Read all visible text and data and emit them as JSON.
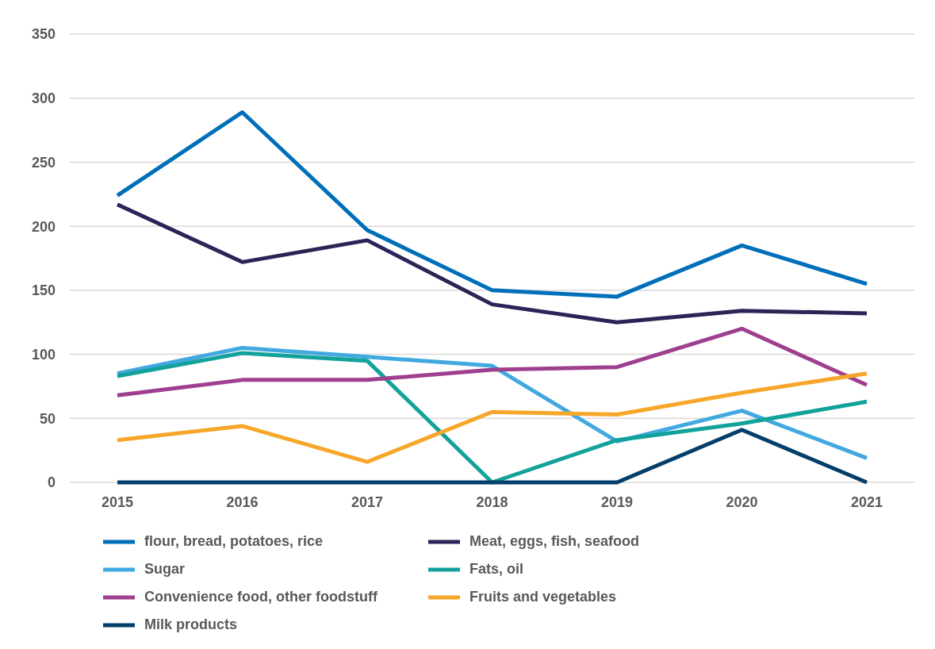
{
  "chart_data": {
    "type": "line",
    "categories": [
      "2015",
      "2016",
      "2017",
      "2018",
      "2019",
      "2020",
      "2021"
    ],
    "series": [
      {
        "name": "flour, bread, potatoes, rice",
        "color": "#006fba",
        "values": [
          224,
          289,
          197,
          150,
          145,
          185,
          155
        ]
      },
      {
        "name": "Meat, eggs, fish, seafood",
        "color": "#2b2457",
        "values": [
          217,
          172,
          189,
          139,
          125,
          134,
          132
        ]
      },
      {
        "name": "Sugar",
        "color": "#41a8e0",
        "values": [
          85,
          105,
          98,
          91,
          32,
          56,
          19
        ]
      },
      {
        "name": "Fats, oil",
        "color": "#13a19b",
        "values": [
          83,
          101,
          95,
          0,
          33,
          46,
          63
        ]
      },
      {
        "name": "Convenience food, other foodstuff",
        "color": "#9e3f8f",
        "values": [
          68,
          80,
          80,
          88,
          90,
          120,
          76
        ]
      },
      {
        "name": "Fruits and vegetables",
        "color": "#f6a72b",
        "values": [
          33,
          44,
          16,
          55,
          53,
          70,
          85
        ]
      },
      {
        "name": "Milk products",
        "color": "#033f6a",
        "values": [
          0,
          0,
          0,
          0,
          0,
          41,
          0
        ]
      }
    ],
    "ylim": [
      0,
      350
    ],
    "yticks": [
      0,
      50,
      100,
      150,
      200,
      250,
      300,
      350
    ],
    "grid": "y",
    "legend": "bottom",
    "marker": "none",
    "line_style": "solid"
  }
}
